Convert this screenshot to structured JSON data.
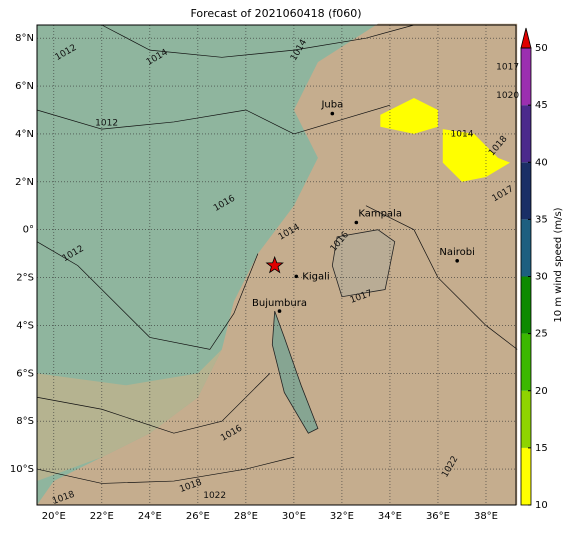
{
  "map": {
    "title": "Forecast of 2021060418 (f060)",
    "xlim": [
      19.3,
      39.25
    ],
    "ylim": [
      -11.5,
      8.55
    ],
    "xticks": [
      {
        "value": 20,
        "label": "20°E"
      },
      {
        "value": 22,
        "label": "22°E"
      },
      {
        "value": 24,
        "label": "24°E"
      },
      {
        "value": 26,
        "label": "26°E"
      },
      {
        "value": 28,
        "label": "28°E"
      },
      {
        "value": 30,
        "label": "30°E"
      },
      {
        "value": 32,
        "label": "32°E"
      },
      {
        "value": 34,
        "label": "34°E"
      },
      {
        "value": 36,
        "label": "36°E"
      },
      {
        "value": 38,
        "label": "38°E"
      }
    ],
    "yticks": [
      {
        "value": 8,
        "label": "8°N"
      },
      {
        "value": 6,
        "label": "6°N"
      },
      {
        "value": 4,
        "label": "4°N"
      },
      {
        "value": 2,
        "label": "2°N"
      },
      {
        "value": 0,
        "label": "0°"
      },
      {
        "value": -2,
        "label": "2°S"
      },
      {
        "value": -4,
        "label": "4°S"
      },
      {
        "value": -6,
        "label": "6°S"
      },
      {
        "value": -8,
        "label": "8°S"
      },
      {
        "value": -10,
        "label": "10°S"
      }
    ],
    "cities": [
      "Juba",
      "Kampala",
      "Kigali",
      "Bujumbura",
      "Nairobi"
    ],
    "contour_labels": [
      "1012",
      "1014",
      "1012",
      "1014",
      "1012",
      "1017",
      "1020",
      "1014",
      "1018",
      "1016",
      "1014",
      "1016",
      "1017",
      "1017",
      "1016",
      "1018",
      "1018",
      "1022",
      "1022"
    ],
    "colorbar": {
      "label": "10 m wind speed (m/s)",
      "ticks": [
        10,
        15,
        20,
        25,
        30,
        35,
        40,
        45,
        50
      ],
      "colors": [
        "#ffff00",
        "#8fd400",
        "#3cb800",
        "#0e8a00",
        "#1d5f80",
        "#1a2f66",
        "#4b2a8c",
        "#9b2fb0"
      ],
      "extend_color": "#e00000"
    }
  }
}
